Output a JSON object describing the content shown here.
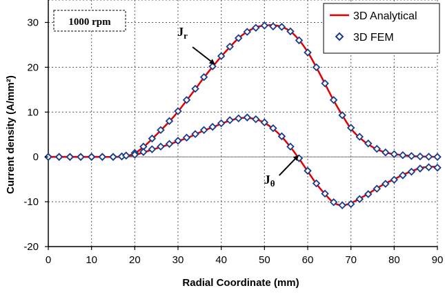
{
  "chart_data": {
    "type": "line",
    "xlabel": "Radial Coordinate  (mm)",
    "ylabel": "Current  density  (A/mm²)",
    "xlim": [
      0,
      90
    ],
    "ylim": [
      -20,
      35
    ],
    "xticks": [
      0,
      10,
      20,
      30,
      40,
      50,
      60,
      70,
      80,
      90
    ],
    "yticks": [
      -20,
      -10,
      0,
      10,
      20,
      30
    ],
    "grid": true,
    "legend_position": "top-right",
    "speed_label": "1000 rpm",
    "annotations": [
      {
        "text": "J",
        "sub": "r",
        "x": 38.8,
        "y": 20.5
      },
      {
        "text": "J",
        "sub": "θ",
        "x": 58.2,
        "y": 0.5
      }
    ],
    "series": [
      {
        "name": "3D Analytical",
        "style": "line",
        "color": "#e00000",
        "curves": [
          {
            "id": "Jr",
            "x": [
              0,
              2.5,
              5,
              7.5,
              10,
              12.5,
              15,
              17,
              18,
              20,
              22,
              24,
              26,
              28,
              30,
              32,
              34,
              36,
              38,
              40,
              42,
              44,
              46,
              48,
              50,
              52,
              54,
              56,
              58,
              60,
              62,
              64,
              66,
              68,
              70,
              72,
              74,
              76,
              78,
              80,
              82,
              84,
              86,
              88,
              90
            ],
            "y": [
              0,
              0,
              0,
              0,
              0,
              0,
              0,
              0.05,
              0.15,
              0.8,
              2.2,
              4.0,
              5.9,
              7.9,
              10.1,
              12.6,
              15.1,
              17.7,
              20.1,
              22.4,
              24.5,
              26.5,
              27.9,
              28.9,
              29.3,
              29.4,
              29.0,
              28.0,
              26.1,
              23.4,
              20.0,
              16.3,
              12.6,
              9.3,
              6.3,
              4.3,
              2.8,
              1.7,
              1.0,
              0.6,
              0.4,
              0.2,
              0.1,
              0.05,
              0
            ]
          },
          {
            "id": "Jtheta",
            "x": [
              0,
              2.5,
              5,
              7.5,
              10,
              12.5,
              15,
              17,
              18,
              20,
              22,
              24,
              26,
              28,
              30,
              32,
              34,
              36,
              38,
              40,
              42,
              44,
              46,
              48,
              50,
              52,
              54,
              56,
              58,
              60,
              62,
              64,
              66,
              68,
              70,
              72,
              74,
              76,
              78,
              80,
              82,
              84,
              86,
              88,
              90
            ],
            "y": [
              0,
              0,
              0,
              0,
              0,
              0,
              0,
              0.05,
              0.15,
              0.4,
              1.0,
              1.6,
              2.2,
              2.8,
              3.5,
              4.2,
              5.0,
              5.9,
              6.6,
              7.4,
              8.1,
              8.6,
              8.7,
              8.4,
              7.6,
              6.3,
              4.5,
              2.2,
              -0.4,
              -3.2,
              -6.0,
              -8.3,
              -10.2,
              -10.8,
              -10.3,
              -9.3,
              -8.2,
              -7.0,
              -5.9,
              -5.0,
              -4.0,
              -3.2,
              -2.5,
              -2.2,
              -2.2
            ]
          }
        ]
      },
      {
        "name": "3D FEM",
        "style": "diamond-markers",
        "color": "#1a3a8c",
        "curves": [
          {
            "id": "Jr",
            "x": [
              0,
              2.5,
              5,
              7.5,
              10,
              12.5,
              15,
              17,
              18,
              20,
              22,
              24,
              26,
              28,
              30,
              32,
              34,
              36,
              38,
              40,
              42,
              44,
              46,
              48,
              50,
              52,
              54,
              56,
              58,
              60,
              62,
              64,
              66,
              68,
              70,
              72,
              74,
              76,
              78,
              80,
              82,
              84,
              86,
              88,
              90
            ],
            "y": [
              0,
              0,
              0,
              0,
              0,
              0,
              0,
              0.1,
              0.3,
              0.9,
              2.3,
              4.1,
              6.0,
              8.0,
              10.2,
              12.7,
              15.2,
              17.8,
              20.2,
              22.5,
              24.6,
              26.5,
              27.9,
              28.8,
              29.3,
              29.1,
              29.0,
              28.0,
              26.0,
              23.3,
              20.0,
              16.4,
              12.7,
              9.3,
              6.5,
              4.5,
              3.0,
              1.8,
              1.0,
              0.6,
              0.4,
              0.2,
              0.1,
              0.05,
              0
            ]
          },
          {
            "id": "Jtheta",
            "x": [
              0,
              2.5,
              5,
              7.5,
              10,
              12.5,
              15,
              17,
              18,
              20,
              22,
              24,
              26,
              28,
              30,
              32,
              34,
              36,
              38,
              40,
              42,
              44,
              46,
              48,
              50,
              52,
              54,
              56,
              58,
              60,
              62,
              64,
              66,
              68,
              70,
              72,
              74,
              76,
              78,
              80,
              82,
              84,
              86,
              88,
              90
            ],
            "y": [
              0,
              0,
              0,
              0,
              0,
              0,
              0,
              0.1,
              0.3,
              0.5,
              1.1,
              1.7,
              2.3,
              2.9,
              3.6,
              4.3,
              5.1,
              6.0,
              6.7,
              7.5,
              8.2,
              8.6,
              8.8,
              8.4,
              7.7,
              6.4,
              4.6,
              2.3,
              -0.3,
              -3.1,
              -5.9,
              -8.2,
              -10.1,
              -10.8,
              -10.5,
              -9.4,
              -8.3,
              -7.1,
              -6.0,
              -5.1,
              -4.1,
              -3.3,
              -2.6,
              -2.3,
              -2.4
            ]
          }
        ]
      }
    ]
  }
}
